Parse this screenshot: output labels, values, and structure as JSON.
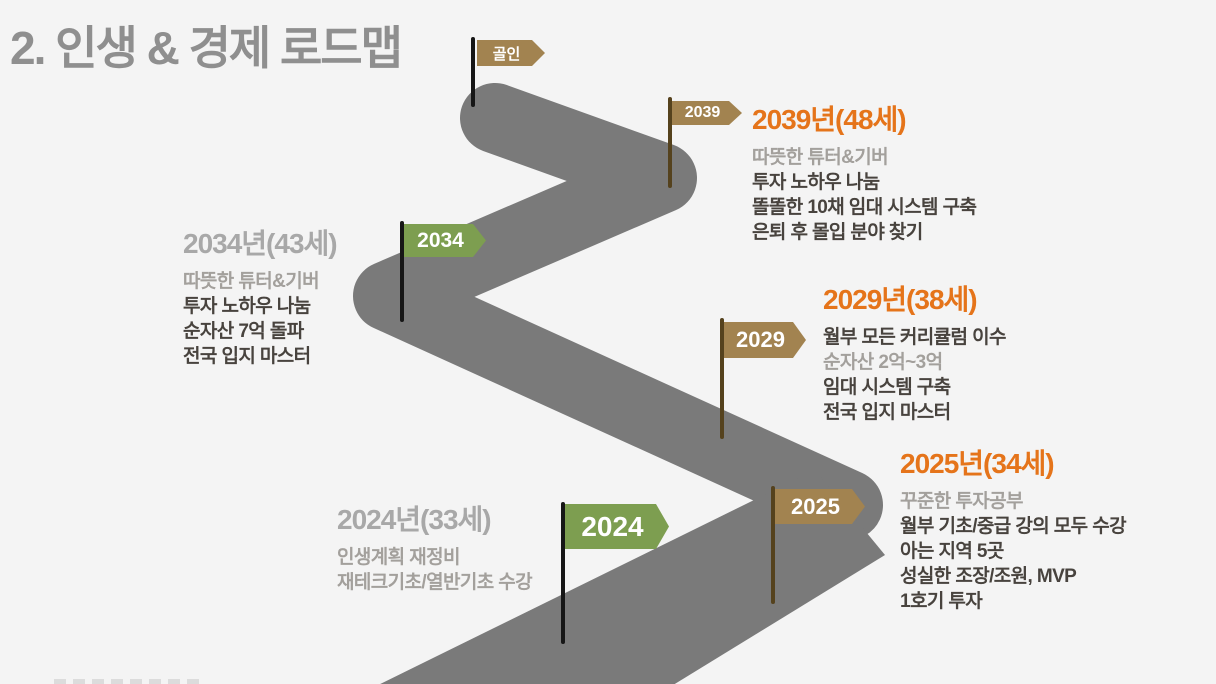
{
  "page": {
    "title": "2. 인생 & 경제 로드맵"
  },
  "colors": {
    "background": "#f4f4f4",
    "road_gray": "#7a7a7a",
    "flag_tan": "#a28350",
    "flag_green": "#7d9e50",
    "pole_brown": "#55421d",
    "pole_black": "#161616",
    "accent_orange": "#e5741a",
    "heading_gray": "#a8a8a8",
    "text_dark": "#48433e",
    "text_muted": "#a3a09c",
    "title_gray": "#8f8f8f"
  },
  "milestones": [
    {
      "id": "goal",
      "flag_label": "골인",
      "flag_color": "tan"
    },
    {
      "id": "2039",
      "flag_label": "2039",
      "flag_color": "tan",
      "heading": "2039년(48세)",
      "heading_accent": true,
      "lines": [
        {
          "text": "따뜻한 튜터&기버",
          "muted": true
        },
        {
          "text": "투자 노하우 나눔",
          "muted": false
        },
        {
          "text": "똘똘한 10채 임대 시스템 구축",
          "muted": false
        },
        {
          "text": "은퇴 후 몰입 분야 찾기",
          "muted": false
        }
      ]
    },
    {
      "id": "2034",
      "flag_label": "2034",
      "flag_color": "green",
      "heading": "2034년(43세)",
      "heading_accent": false,
      "lines": [
        {
          "text": "따뜻한 튜터&기버",
          "muted": true
        },
        {
          "text": "투자 노하우 나눔",
          "muted": false
        },
        {
          "text": "순자산 7억 돌파",
          "muted": false
        },
        {
          "text": "전국 입지 마스터",
          "muted": false
        }
      ]
    },
    {
      "id": "2029",
      "flag_label": "2029",
      "flag_color": "tan",
      "heading": "2029년(38세)",
      "heading_accent": true,
      "lines": [
        {
          "text": "월부 모든 커리큘럼 이수",
          "muted": false
        },
        {
          "text": "순자산 2억~3억",
          "muted": true
        },
        {
          "text": "임대 시스템 구축",
          "muted": false
        },
        {
          "text": "전국 입지 마스터",
          "muted": false
        }
      ]
    },
    {
      "id": "2025",
      "flag_label": "2025",
      "flag_color": "tan",
      "heading": "2025년(34세)",
      "heading_accent": true,
      "lines": [
        {
          "text": "꾸준한 투자공부",
          "muted": true
        },
        {
          "text": "월부 기초/중급 강의 모두 수강",
          "muted": false
        },
        {
          "text": "아는 지역 5곳",
          "muted": false
        },
        {
          "text": "성실한 조장/조원, MVP",
          "muted": false
        },
        {
          "text": "1호기 투자",
          "muted": false
        }
      ]
    },
    {
      "id": "2024",
      "flag_label": "2024",
      "flag_color": "green",
      "heading": "2024년(33세)",
      "heading_accent": false,
      "lines": [
        {
          "text": "인생계획 재정비",
          "muted": true
        },
        {
          "text": "재테크기초/열반기초 수강",
          "muted": true
        }
      ]
    }
  ]
}
